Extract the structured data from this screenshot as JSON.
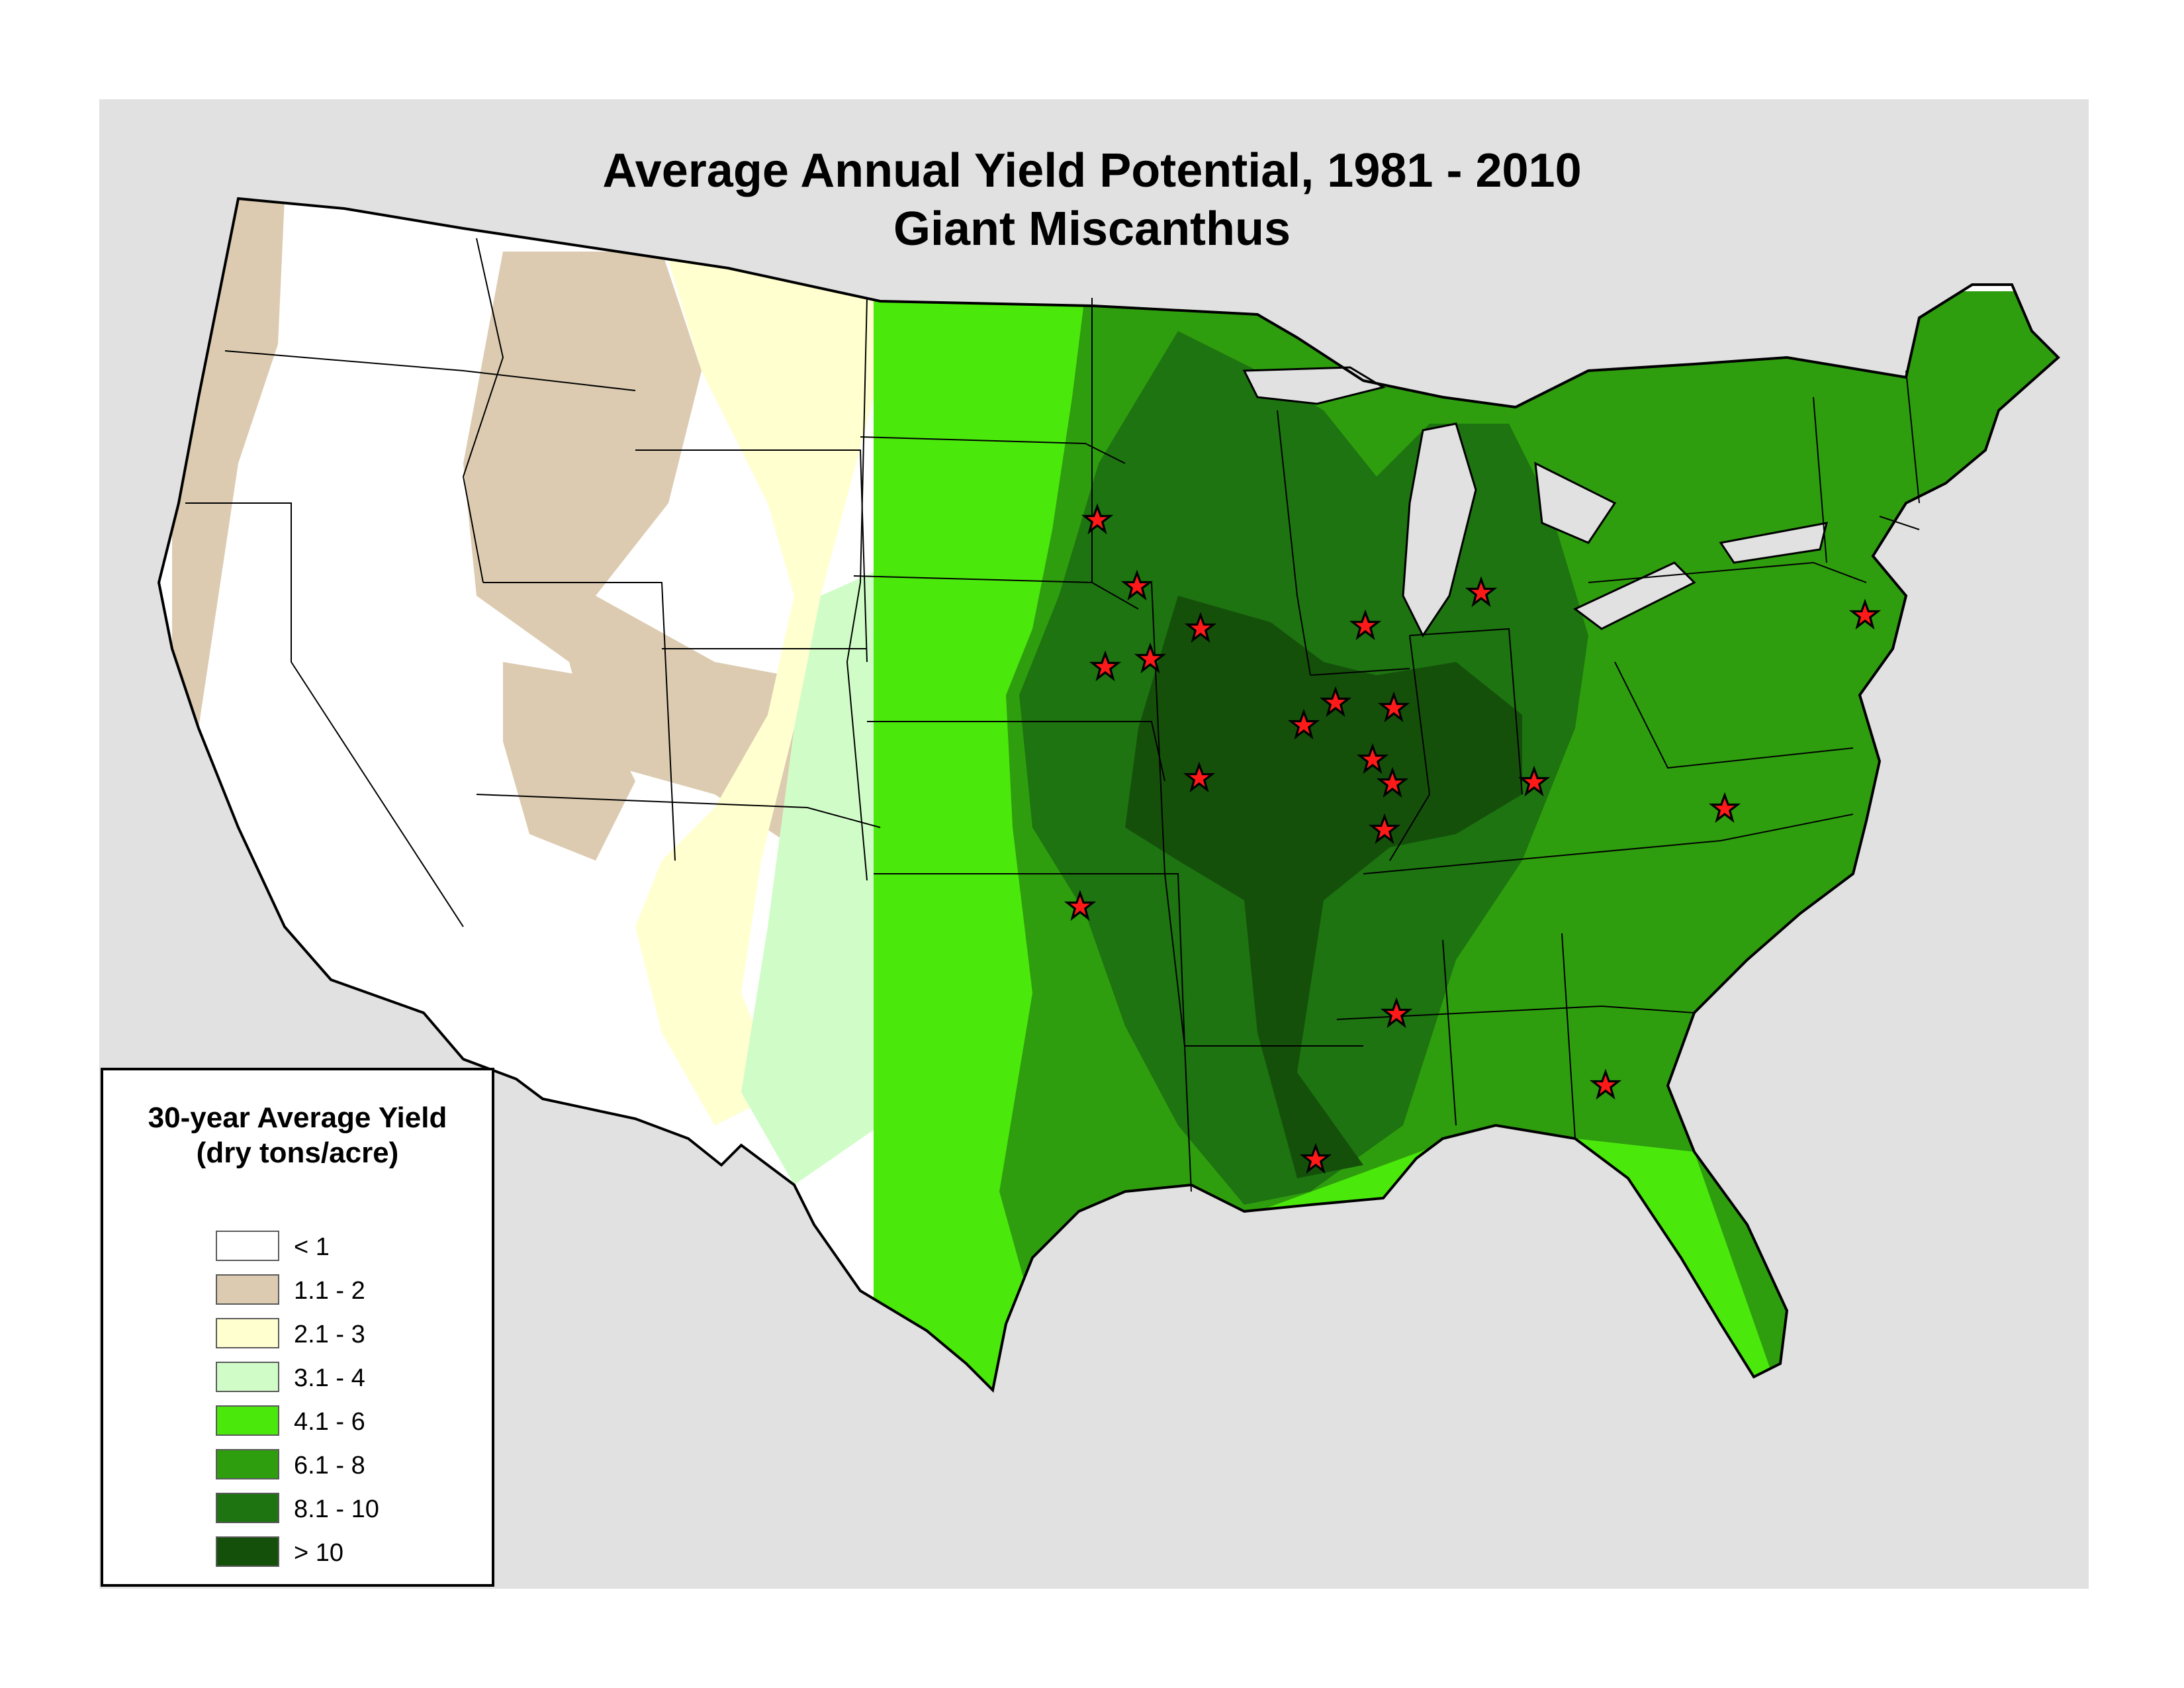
{
  "title": {
    "line1": "Average Annual Yield Potential, 1981 - 2010",
    "line2": "Giant Miscanthus"
  },
  "legend": {
    "title_line1": "30-year Average Yield",
    "title_line2": "(dry tons/acre)",
    "items": [
      {
        "label": "< 1",
        "color": "#ffffff"
      },
      {
        "label": "1.1 - 2",
        "color": "#dccbb0"
      },
      {
        "label": "2.1 - 3",
        "color": "#ffffcf"
      },
      {
        "label": "3.1 - 4",
        "color": "#d0fdc7"
      },
      {
        "label": "4.1 - 6",
        "color": "#4be80c"
      },
      {
        "label": "6.1 - 8",
        "color": "#2f9e0e"
      },
      {
        "label": "8.1 - 10",
        "color": "#1d7410"
      },
      {
        "label": "> 10",
        "color": "#15500b"
      }
    ]
  },
  "map": {
    "background_color": "#e1e1e1",
    "boundary_color": "#000000",
    "marker": {
      "shape": "star",
      "fill": "#ff1a1a",
      "stroke": "#000000"
    }
  }
}
